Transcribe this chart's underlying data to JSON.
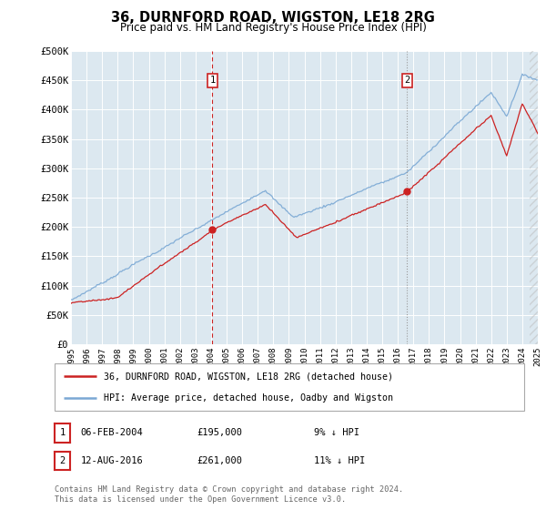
{
  "title": "36, DURNFORD ROAD, WIGSTON, LE18 2RG",
  "subtitle": "Price paid vs. HM Land Registry's House Price Index (HPI)",
  "background_color": "#ffffff",
  "plot_bg_color": "#dce8f0",
  "grid_color": "#ffffff",
  "ylim": [
    0,
    500000
  ],
  "yticks": [
    0,
    50000,
    100000,
    150000,
    200000,
    250000,
    300000,
    350000,
    400000,
    450000,
    500000
  ],
  "ytick_labels": [
    "£0",
    "£50K",
    "£100K",
    "£150K",
    "£200K",
    "£250K",
    "£300K",
    "£350K",
    "£400K",
    "£450K",
    "£500K"
  ],
  "sale1_date": 2004.09,
  "sale1_price": 195000,
  "sale1_label": "1",
  "sale1_date_str": "06-FEB-2004",
  "sale2_date": 2016.6,
  "sale2_price": 261000,
  "sale2_label": "2",
  "sale2_date_str": "12-AUG-2016",
  "hpi_color": "#7aa8d4",
  "sale_color": "#cc2222",
  "vline1_color": "#cc2222",
  "vline2_color": "#999999",
  "legend_label_sale": "36, DURNFORD ROAD, WIGSTON, LE18 2RG (detached house)",
  "legend_label_hpi": "HPI: Average price, detached house, Oadby and Wigston",
  "footnote": "Contains HM Land Registry data © Crown copyright and database right 2024.\nThis data is licensed under the Open Government Licence v3.0.",
  "xmin": 1995,
  "xmax": 2025,
  "fig_width": 6.0,
  "fig_height": 5.6,
  "dpi": 100
}
